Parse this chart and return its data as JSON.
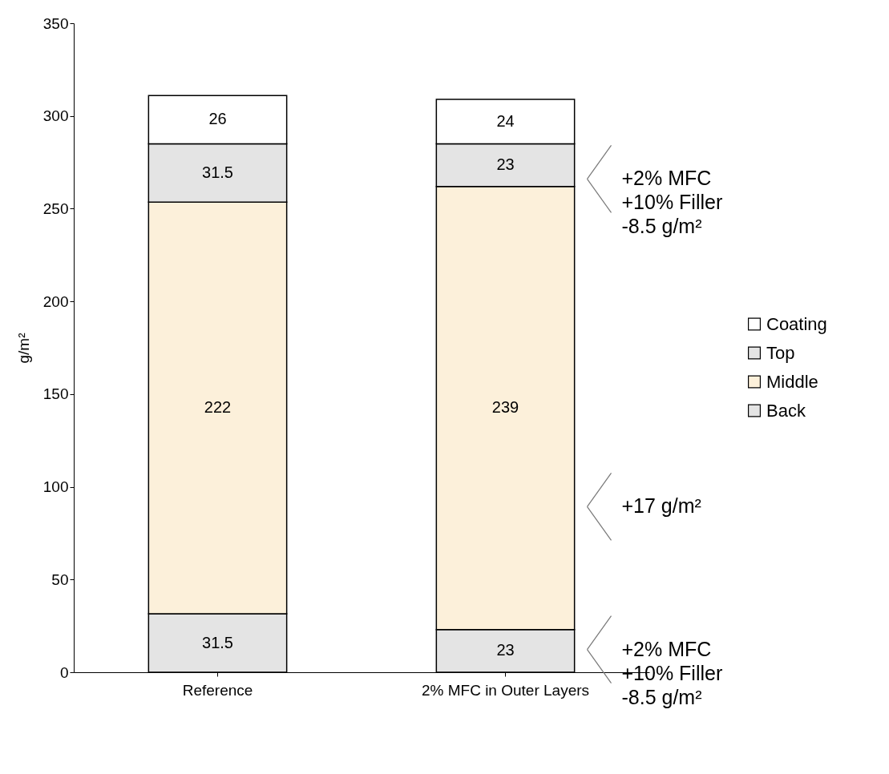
{
  "chart_data": {
    "type": "bar",
    "stacked": true,
    "ylabel": "g/m²",
    "categories": [
      "Reference",
      "2% MFC in Outer Layers"
    ],
    "series": [
      {
        "name": "Back",
        "color": "#e4e4e4",
        "values": [
          31.5,
          23
        ]
      },
      {
        "name": "Middle",
        "color": "#fcf0da",
        "values": [
          222,
          239
        ]
      },
      {
        "name": "Top",
        "color": "#e4e4e4",
        "values": [
          31.5,
          23
        ]
      },
      {
        "name": "Coating",
        "color": "#ffffff",
        "values": [
          26,
          24
        ]
      }
    ],
    "ylim": [
      0,
      350
    ],
    "yticks": [
      0,
      50,
      100,
      150,
      200,
      250,
      300,
      350
    ],
    "grid": false,
    "legend": "right",
    "data_labels": true,
    "annotations": [
      "+2% MFC\n+10% Filler\n-8.5 g/m²",
      "+17 g/m²",
      "+2% MFC\n+10% Filler\n-8.5 g/m²"
    ]
  }
}
